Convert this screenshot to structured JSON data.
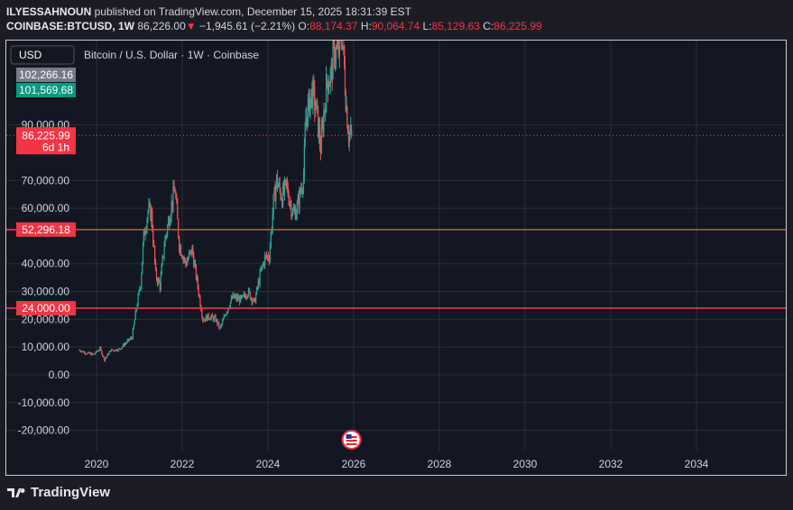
{
  "header": {
    "publisher": "ILYESSAHNOUN",
    "published_text": "published on TradingView.com, December 15, 2025 18:31:39 EST",
    "symbol": "COINBASE:BTCUSD, 1W",
    "last": "86,226.00",
    "change_arrow": "▼",
    "change": "−1,945.61 (−2.21%)",
    "o_label": "O:",
    "o_value": "88,174.37",
    "h_label": "H:",
    "h_value": "90,064.74",
    "l_label": "L:",
    "l_value": "85,129.63",
    "c_label": "C:",
    "c_value": "86,225.99"
  },
  "footer": {
    "brand": "TradingView"
  },
  "colors": {
    "up": "#26a69a",
    "down": "#ef5350",
    "hline": "#f23645",
    "price_tag": "#f23645",
    "bid_tag": "#787b86",
    "ask_tag": "#089981",
    "grid": "#2a2e39",
    "text": "#d1d4dc",
    "bg": "#131722"
  },
  "chart_data": {
    "type": "candlestick",
    "title": "Bitcoin / U.S. Dollar · 1W · Coinbase",
    "currency_button": "USD",
    "interval": "1W",
    "y_ticks": [
      {
        "v": 90000,
        "label": "90,000.00"
      },
      {
        "v": 70000,
        "label": "70,000.00"
      },
      {
        "v": 60000,
        "label": "60,000.00"
      },
      {
        "v": 40000,
        "label": "40,000.00"
      },
      {
        "v": 30000,
        "label": "30,000.00"
      },
      {
        "v": 20000,
        "label": "20,000.00"
      },
      {
        "v": 10000,
        "label": "10,000.00"
      },
      {
        "v": 0,
        "label": "0.00"
      },
      {
        "v": -10000,
        "label": "-10,000.00"
      },
      {
        "v": -20000,
        "label": "-20,000.00"
      }
    ],
    "x_ticks": [
      {
        "year": 2020,
        "label": "2020"
      },
      {
        "year": 2022,
        "label": "2022"
      },
      {
        "year": 2024,
        "label": "2024"
      },
      {
        "year": 2026,
        "label": "2026"
      },
      {
        "year": 2028,
        "label": "2028"
      },
      {
        "year": 2030,
        "label": "2030"
      },
      {
        "year": 2032,
        "label": "2032"
      },
      {
        "year": 2034,
        "label": "2034"
      }
    ],
    "price_tags": {
      "ask": {
        "v": 102266.16,
        "label": "102,266.16"
      },
      "bid": {
        "v": 101569.68,
        "label": "101,569.68"
      },
      "last": {
        "v": 86225.99,
        "label": "86,225.99",
        "countdown": "6d 1h"
      }
    },
    "horizontal_lines": [
      {
        "v": 52296.18,
        "label": "52,296.18"
      },
      {
        "v": 24000.0,
        "label": "24,000.00"
      }
    ],
    "series": [
      {
        "t": 2019.6,
        "c": 9000
      },
      {
        "t": 2019.75,
        "c": 8000
      },
      {
        "t": 2019.95,
        "c": 7300
      },
      {
        "t": 2020.1,
        "c": 9500
      },
      {
        "t": 2020.2,
        "c": 5500
      },
      {
        "t": 2020.35,
        "c": 8800
      },
      {
        "t": 2020.55,
        "c": 9200
      },
      {
        "t": 2020.7,
        "c": 11500
      },
      {
        "t": 2020.85,
        "c": 13500
      },
      {
        "t": 2020.95,
        "c": 24000
      },
      {
        "t": 2021.05,
        "c": 33000
      },
      {
        "t": 2021.12,
        "c": 50000
      },
      {
        "t": 2021.22,
        "c": 59000
      },
      {
        "t": 2021.3,
        "c": 58000
      },
      {
        "t": 2021.4,
        "c": 36000
      },
      {
        "t": 2021.5,
        "c": 32000
      },
      {
        "t": 2021.6,
        "c": 47000
      },
      {
        "t": 2021.75,
        "c": 60000
      },
      {
        "t": 2021.85,
        "c": 67000
      },
      {
        "t": 2021.95,
        "c": 47000
      },
      {
        "t": 2022.1,
        "c": 40000
      },
      {
        "t": 2022.25,
        "c": 45000
      },
      {
        "t": 2022.4,
        "c": 30000
      },
      {
        "t": 2022.5,
        "c": 20000
      },
      {
        "t": 2022.65,
        "c": 21000
      },
      {
        "t": 2022.8,
        "c": 20000
      },
      {
        "t": 2022.9,
        "c": 16500
      },
      {
        "t": 2023.05,
        "c": 23000
      },
      {
        "t": 2023.2,
        "c": 28000
      },
      {
        "t": 2023.4,
        "c": 27000
      },
      {
        "t": 2023.55,
        "c": 30000
      },
      {
        "t": 2023.7,
        "c": 26000
      },
      {
        "t": 2023.85,
        "c": 37000
      },
      {
        "t": 2023.95,
        "c": 42000
      },
      {
        "t": 2024.05,
        "c": 43000
      },
      {
        "t": 2024.15,
        "c": 62000
      },
      {
        "t": 2024.22,
        "c": 70000
      },
      {
        "t": 2024.35,
        "c": 64000
      },
      {
        "t": 2024.45,
        "c": 68000
      },
      {
        "t": 2024.6,
        "c": 58000
      },
      {
        "t": 2024.7,
        "c": 60000
      },
      {
        "t": 2024.85,
        "c": 72000
      },
      {
        "t": 2024.9,
        "c": 92000
      },
      {
        "t": 2024.97,
        "c": 97000
      },
      {
        "t": 2025.05,
        "c": 102000
      },
      {
        "t": 2025.15,
        "c": 95000
      },
      {
        "t": 2025.25,
        "c": 82000
      },
      {
        "t": 2025.32,
        "c": 94000
      },
      {
        "t": 2025.4,
        "c": 106000
      },
      {
        "t": 2025.5,
        "c": 108000
      },
      {
        "t": 2025.55,
        "c": 118000
      },
      {
        "t": 2025.65,
        "c": 115000
      },
      {
        "t": 2025.75,
        "c": 123000
      },
      {
        "t": 2025.8,
        "c": 110000
      },
      {
        "t": 2025.85,
        "c": 96000
      },
      {
        "t": 2025.9,
        "c": 87000
      },
      {
        "t": 2025.95,
        "c": 86226
      }
    ]
  }
}
